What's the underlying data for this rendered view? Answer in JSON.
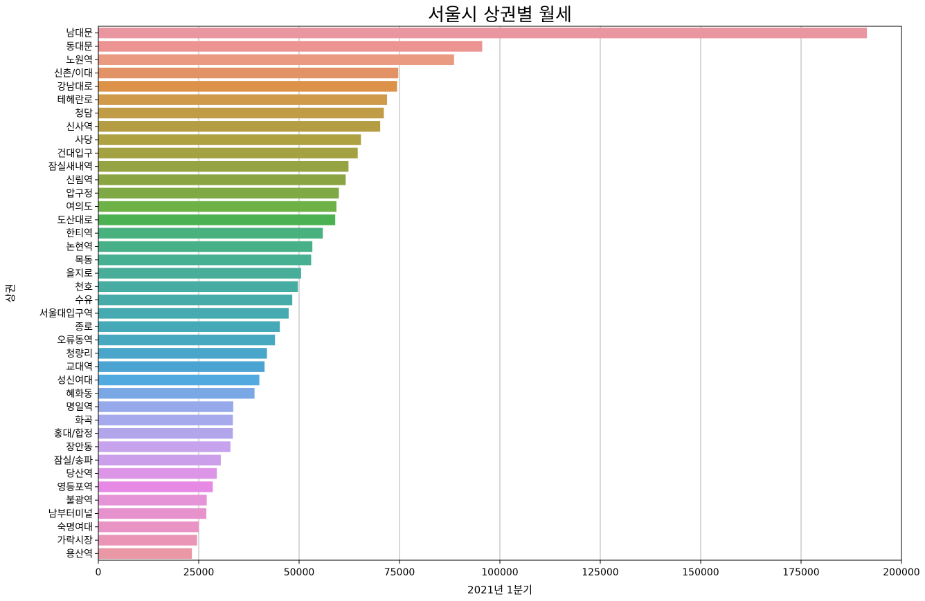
{
  "chart_data": {
    "type": "bar",
    "orientation": "horizontal",
    "title": "서울시 상권별 월세",
    "xlabel": "2021년 1분기",
    "ylabel": "상권",
    "xlim": [
      0,
      200000
    ],
    "xticks": [
      0,
      25000,
      50000,
      75000,
      100000,
      125000,
      150000,
      175000,
      200000
    ],
    "grid": "x",
    "categories": [
      "남대문",
      "동대문",
      "노원역",
      "신촌/이대",
      "강남대로",
      "테헤란로",
      "청담",
      "신사역",
      "사당",
      "건대입구",
      "잠실새내역",
      "신림역",
      "압구정",
      "여의도",
      "도산대로",
      "한티역",
      "논현역",
      "목동",
      "을지로",
      "천호",
      "수유",
      "서울대입구역",
      "종로",
      "오류동역",
      "청량리",
      "교대역",
      "성신여대",
      "혜화동",
      "명일역",
      "화곡",
      "홍대/합정",
      "장안동",
      "잠실/송파",
      "당산역",
      "영등포역",
      "불광역",
      "남부터미널",
      "숙명여대",
      "가락시장",
      "용산역"
    ],
    "values": [
      191400,
      95600,
      88600,
      74700,
      74400,
      71900,
      71100,
      70200,
      65400,
      64600,
      62300,
      61600,
      59900,
      59300,
      59000,
      55900,
      53300,
      53000,
      50500,
      49700,
      48300,
      47400,
      45200,
      44000,
      42000,
      41400,
      40100,
      38900,
      33600,
      33500,
      33500,
      32900,
      30500,
      29500,
      28500,
      27000,
      26900,
      25000,
      24600,
      23300
    ],
    "colors": [
      "#ea96a1",
      "#eb9491",
      "#e99a81",
      "#e39265",
      "#dd9249",
      "#cf9a4a",
      "#bf9c45",
      "#b49d43",
      "#aea142",
      "#a3a141",
      "#95a343",
      "#8ba443",
      "#7fa944",
      "#6db147",
      "#4cb152",
      "#48b17d",
      "#48b088",
      "#47af92",
      "#48ae9a",
      "#47ada2",
      "#47aca9",
      "#46abb1",
      "#46a9b8",
      "#48a8c0",
      "#49a6ca",
      "#4ba3d1",
      "#52a9e0",
      "#7aa8e5",
      "#96a9ea",
      "#a6a9eb",
      "#b3a5ec",
      "#c6a3ec",
      "#cc9fea",
      "#dd95e8",
      "#e68ae5",
      "#e694d8",
      "#e692cd",
      "#ea94c6",
      "#ea95b6",
      "#ea97a6"
    ]
  }
}
